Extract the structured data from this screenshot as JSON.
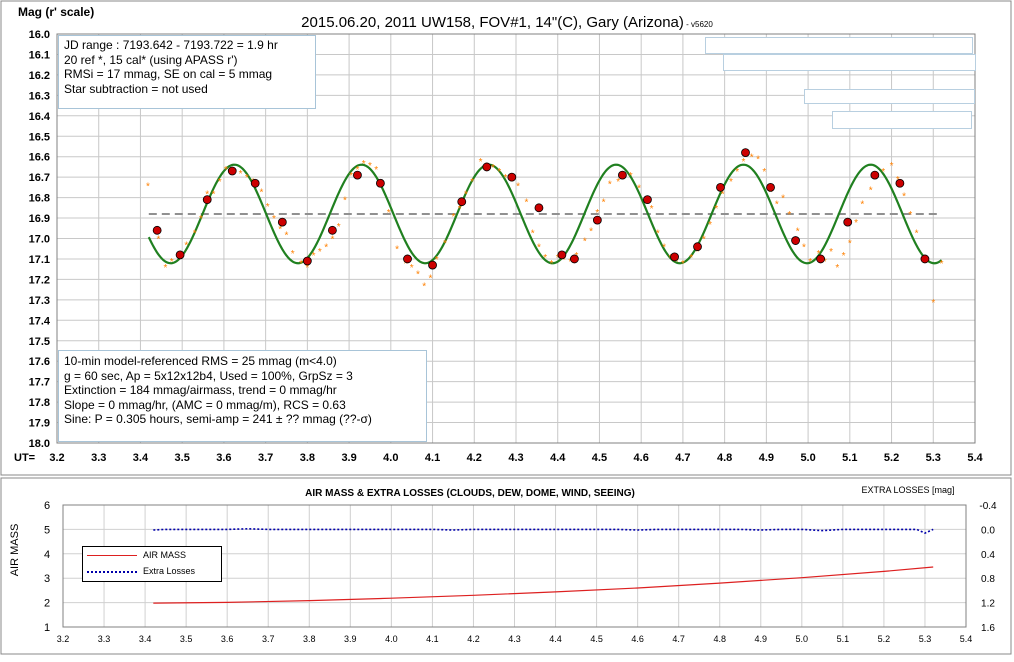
{
  "chart_data": [
    {
      "type": "scatter",
      "title": "2015.06.20, 2011 UW158, FOV#1, 14\"(C), Gary (Arizona)",
      "title_suffix": " - v5620",
      "ylabel": "Mag (r' scale)",
      "xlabel_prefix": "UT=",
      "xlim": [
        3.2,
        5.4
      ],
      "ylim": [
        16.0,
        18.0
      ],
      "y_inverted": true,
      "grid": true,
      "x_ticks": [
        "3.2",
        "3.3",
        "3.4",
        "3.5",
        "3.6",
        "3.7",
        "3.8",
        "3.9",
        "4.0",
        "4.1",
        "4.2",
        "4.3",
        "4.4",
        "4.5",
        "4.6",
        "4.7",
        "4.8",
        "4.9",
        "5.0",
        "5.1",
        "5.2",
        "5.3",
        "5.4"
      ],
      "y_ticks": [
        "16.0",
        "16.1",
        "16.2",
        "16.3",
        "16.4",
        "16.5",
        "16.6",
        "16.7",
        "16.8",
        "16.9",
        "17.0",
        "17.1",
        "17.2",
        "17.3",
        "17.4",
        "17.5",
        "17.6",
        "17.7",
        "17.8",
        "17.9",
        "18.0"
      ],
      "colors": {
        "points": "#ff8000",
        "binned": "#cc0000",
        "model": "#208020",
        "mean": "#909090"
      },
      "model": {
        "period_hr": 0.305,
        "mean_mag": 16.88,
        "semi_amp": 0.241,
        "t_max": 3.625,
        "x_range": [
          3.42,
          5.32
        ]
      },
      "mean_line": {
        "y": 16.88,
        "x_range": [
          3.42,
          5.32
        ]
      },
      "points": [
        [
          3.418,
          16.74
        ],
        [
          3.443,
          17.0
        ],
        [
          3.46,
          17.14
        ],
        [
          3.475,
          17.11
        ],
        [
          3.49,
          17.08
        ],
        [
          3.51,
          17.03
        ],
        [
          3.53,
          16.97
        ],
        [
          3.545,
          16.9
        ],
        [
          3.56,
          16.78
        ],
        [
          3.575,
          16.78
        ],
        [
          3.59,
          16.72
        ],
        [
          3.605,
          16.66
        ],
        [
          3.62,
          16.67
        ],
        [
          3.64,
          16.68
        ],
        [
          3.655,
          16.7
        ],
        [
          3.67,
          16.72
        ],
        [
          3.69,
          16.77
        ],
        [
          3.705,
          16.84
        ],
        [
          3.72,
          16.9
        ],
        [
          3.735,
          16.95
        ],
        [
          3.75,
          16.98
        ],
        [
          3.765,
          17.07
        ],
        [
          3.785,
          17.12
        ],
        [
          3.8,
          17.14
        ],
        [
          3.815,
          17.08
        ],
        [
          3.83,
          17.06
        ],
        [
          3.845,
          17.04
        ],
        [
          3.86,
          17.0
        ],
        [
          3.875,
          16.94
        ],
        [
          3.89,
          16.81
        ],
        [
          3.905,
          16.69
        ],
        [
          3.92,
          16.66
        ],
        [
          3.935,
          16.63
        ],
        [
          3.95,
          16.64
        ],
        [
          3.965,
          16.66
        ],
        [
          3.98,
          16.74
        ],
        [
          3.995,
          16.87
        ],
        [
          4.015,
          17.05
        ],
        [
          4.035,
          17.12
        ],
        [
          4.05,
          17.14
        ],
        [
          4.065,
          17.17
        ],
        [
          4.08,
          17.23
        ],
        [
          4.095,
          17.19
        ],
        [
          4.11,
          17.1
        ],
        [
          4.13,
          17.02
        ],
        [
          4.15,
          16.89
        ],
        [
          4.165,
          16.85
        ],
        [
          4.18,
          16.78
        ],
        [
          4.195,
          16.72
        ],
        [
          4.215,
          16.62
        ],
        [
          4.23,
          16.66
        ],
        [
          4.245,
          16.65
        ],
        [
          4.26,
          16.67
        ],
        [
          4.275,
          16.7
        ],
        [
          4.29,
          16.72
        ],
        [
          4.305,
          16.74
        ],
        [
          4.325,
          16.82
        ],
        [
          4.34,
          16.97
        ],
        [
          4.355,
          17.04
        ],
        [
          4.37,
          17.09
        ],
        [
          4.385,
          17.12
        ],
        [
          4.4,
          17.09
        ],
        [
          4.415,
          17.1
        ],
        [
          4.43,
          17.11
        ],
        [
          4.445,
          17.08
        ],
        [
          4.465,
          17.01
        ],
        [
          4.48,
          16.96
        ],
        [
          4.495,
          16.87
        ],
        [
          4.51,
          16.82
        ],
        [
          4.525,
          16.73
        ],
        [
          4.545,
          16.72
        ],
        [
          4.56,
          16.69
        ],
        [
          4.575,
          16.69
        ],
        [
          4.595,
          16.75
        ],
        [
          4.61,
          16.81
        ],
        [
          4.625,
          16.85
        ],
        [
          4.64,
          16.97
        ],
        [
          4.655,
          17.04
        ],
        [
          4.67,
          17.09
        ],
        [
          4.685,
          17.11
        ],
        [
          4.7,
          17.12
        ],
        [
          4.72,
          17.09
        ],
        [
          4.735,
          17.06
        ],
        [
          4.75,
          17.0
        ],
        [
          4.765,
          16.93
        ],
        [
          4.78,
          16.85
        ],
        [
          4.795,
          16.78
        ],
        [
          4.815,
          16.72
        ],
        [
          4.83,
          16.67
        ],
        [
          4.845,
          16.62
        ],
        [
          4.865,
          16.6
        ],
        [
          4.88,
          16.61
        ],
        [
          4.895,
          16.67
        ],
        [
          4.91,
          16.77
        ],
        [
          4.925,
          16.83
        ],
        [
          4.94,
          16.8
        ],
        [
          4.955,
          16.88
        ],
        [
          4.975,
          16.96
        ],
        [
          4.99,
          17.04
        ],
        [
          5.005,
          17.11
        ],
        [
          5.025,
          17.07
        ],
        [
          5.04,
          17.11
        ],
        [
          5.055,
          17.06
        ],
        [
          5.07,
          17.14
        ],
        [
          5.085,
          17.08
        ],
        [
          5.1,
          17.02
        ],
        [
          5.115,
          16.92
        ],
        [
          5.13,
          16.83
        ],
        [
          5.15,
          16.76
        ],
        [
          5.165,
          16.7
        ],
        [
          5.18,
          16.67
        ],
        [
          5.2,
          16.64
        ],
        [
          5.215,
          16.71
        ],
        [
          5.23,
          16.79
        ],
        [
          5.245,
          16.88
        ],
        [
          5.26,
          16.97
        ],
        [
          5.28,
          17.1
        ],
        [
          5.3,
          17.31
        ],
        [
          5.32,
          17.12
        ]
      ],
      "binned": [
        [
          3.44,
          16.96
        ],
        [
          3.495,
          17.08
        ],
        [
          3.56,
          16.81
        ],
        [
          3.62,
          16.67
        ],
        [
          3.675,
          16.73
        ],
        [
          3.74,
          16.92
        ],
        [
          3.8,
          17.11
        ],
        [
          3.86,
          16.96
        ],
        [
          3.92,
          16.69
        ],
        [
          3.975,
          16.73
        ],
        [
          4.04,
          17.1
        ],
        [
          4.1,
          17.13
        ],
        [
          4.17,
          16.82
        ],
        [
          4.23,
          16.65
        ],
        [
          4.29,
          16.7
        ],
        [
          4.355,
          16.85
        ],
        [
          4.41,
          17.08
        ],
        [
          4.44,
          17.1
        ],
        [
          4.495,
          16.91
        ],
        [
          4.555,
          16.69
        ],
        [
          4.615,
          16.81
        ],
        [
          4.68,
          17.09
        ],
        [
          4.735,
          17.04
        ],
        [
          4.79,
          16.75
        ],
        [
          4.85,
          16.58
        ],
        [
          4.91,
          16.75
        ],
        [
          4.97,
          17.01
        ],
        [
          5.03,
          17.1
        ],
        [
          5.095,
          16.92
        ],
        [
          5.16,
          16.69
        ],
        [
          5.22,
          16.73
        ],
        [
          5.28,
          17.1
        ]
      ]
    },
    {
      "type": "line",
      "title": "AIR MASS & EXTRA LOSSES (CLOUDS, DEW, DOME, WIND, SEEING)",
      "ylabel": "AIR MASS",
      "y2label": "EXTRA LOSSES [mag]",
      "xlim": [
        3.2,
        5.4
      ],
      "ylim": [
        1,
        6
      ],
      "y2lim": [
        -0.4,
        1.6
      ],
      "y2_inverted": true,
      "grid": true,
      "x_ticks": [
        "3.2",
        "3.3",
        "3.4",
        "3.5",
        "3.6",
        "3.7",
        "3.8",
        "3.9",
        "4.0",
        "4.1",
        "4.2",
        "4.3",
        "4.4",
        "4.5",
        "4.6",
        "4.7",
        "4.8",
        "4.9",
        "5.0",
        "5.1",
        "5.2",
        "5.3",
        "5.4"
      ],
      "y_ticks": [
        "1",
        "2",
        "3",
        "4",
        "5",
        "6"
      ],
      "y2_ticks": [
        "-0.4",
        "0.0",
        "0.4",
        "0.8",
        "1.2",
        "1.6"
      ],
      "legend_placement": "left",
      "colors": {
        "airmass": "#dd2020",
        "extra": "#0000aa"
      },
      "series": [
        {
          "name": "AIR MASS",
          "type": "line",
          "points": [
            [
              3.42,
              1.98
            ],
            [
              3.6,
              2.01
            ],
            [
              3.8,
              2.08
            ],
            [
              4.0,
              2.18
            ],
            [
              4.2,
              2.3
            ],
            [
              4.4,
              2.44
            ],
            [
              4.6,
              2.6
            ],
            [
              4.8,
              2.8
            ],
            [
              5.0,
              3.02
            ],
            [
              5.2,
              3.28
            ],
            [
              5.32,
              3.46
            ]
          ]
        },
        {
          "name": "Extra Losses",
          "type": "dotted",
          "points": [
            [
              3.42,
              0.01
            ],
            [
              3.45,
              0.0
            ],
            [
              3.5,
              0.0
            ],
            [
              3.55,
              0.0
            ],
            [
              3.6,
              0.0
            ],
            [
              3.65,
              -0.01
            ],
            [
              3.7,
              0.0
            ],
            [
              3.75,
              0.0
            ],
            [
              3.8,
              0.0
            ],
            [
              3.85,
              0.0
            ],
            [
              3.9,
              0.0
            ],
            [
              3.95,
              0.0
            ],
            [
              4.0,
              0.0
            ],
            [
              4.05,
              0.0
            ],
            [
              4.1,
              0.0
            ],
            [
              4.15,
              0.01
            ],
            [
              4.2,
              0.0
            ],
            [
              4.25,
              0.0
            ],
            [
              4.3,
              0.0
            ],
            [
              4.35,
              0.0
            ],
            [
              4.4,
              0.0
            ],
            [
              4.45,
              0.0
            ],
            [
              4.5,
              0.0
            ],
            [
              4.55,
              0.0
            ],
            [
              4.6,
              0.01
            ],
            [
              4.65,
              0.0
            ],
            [
              4.7,
              0.0
            ],
            [
              4.75,
              0.0
            ],
            [
              4.8,
              0.0
            ],
            [
              4.85,
              0.0
            ],
            [
              4.9,
              0.01
            ],
            [
              4.95,
              0.0
            ],
            [
              5.0,
              0.0
            ],
            [
              5.05,
              0.02
            ],
            [
              5.1,
              0.0
            ],
            [
              5.15,
              0.0
            ],
            [
              5.2,
              0.0
            ],
            [
              5.25,
              0.0
            ],
            [
              5.28,
              0.0
            ],
            [
              5.3,
              0.06
            ],
            [
              5.32,
              0.0
            ]
          ]
        }
      ]
    }
  ],
  "info_top": [
    "JD range : 7193.642 - 7193.722 = 1.9 hr",
    " 20 ref *, 15 cal* (using APASS r')",
    "RMSi = 17 mmag, SE on cal = 5 mmag",
    "Star subtraction = not used"
  ],
  "info_bottom": [
    "10-min model-referenced RMS = 25 mmag (m<4.0)",
    "g = 60 sec, Ap = 5x12x12b4, Used = 100%,  GrpSz = 3",
    "Extinction = 184 mmag/airmass, trend = 0 mmag/hr",
    "Slope = 0 mmag/hr, (AMC = 0 mmag/m), RCS = 0.63",
    "Sine: P = 0.305 hours, semi-amp = 241 ± ?? mmag (??-σ)"
  ]
}
